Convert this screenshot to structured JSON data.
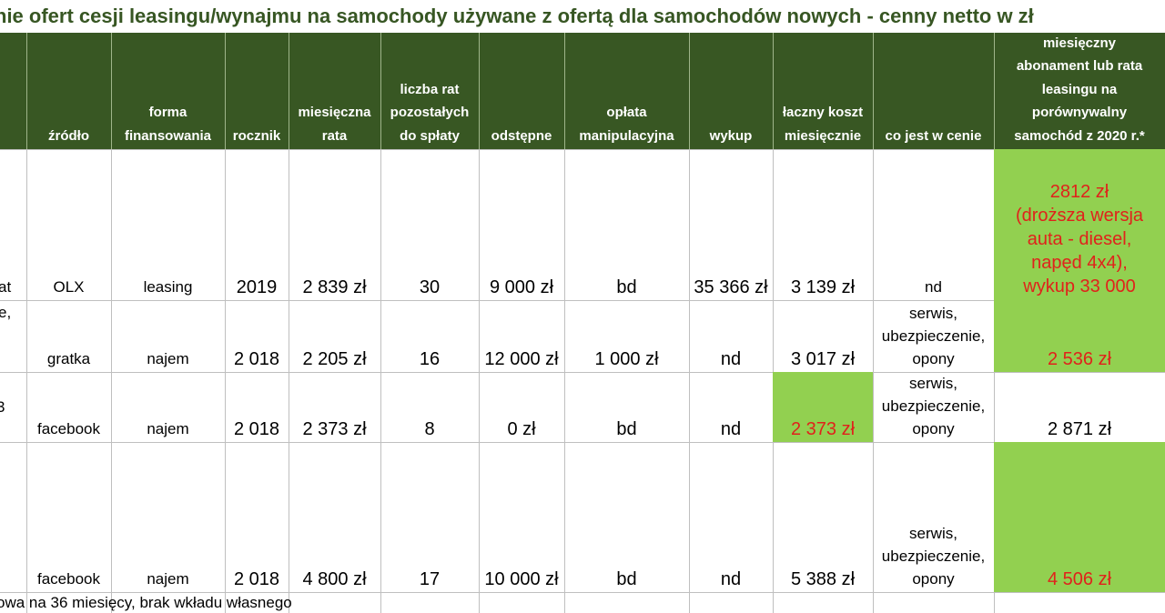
{
  "title": "nie ofert cesji leasingu/wynajmu na samochody używane z ofertą dla samochodów nowych - cenny netto w zł",
  "colors": {
    "header_bg": "#385723",
    "title_color": "#375623",
    "highlight": "#92d050",
    "red_text": "#e0221b"
  },
  "headers": {
    "source": [
      "źródło"
    ],
    "financing": [
      "forma",
      "finansowania"
    ],
    "year": [
      "rocznik"
    ],
    "monthly_rate": [
      "miesięczna",
      "rata"
    ],
    "remaining": [
      "liczba rat",
      "pozostałych",
      "do spłaty"
    ],
    "fee": [
      "odstępne"
    ],
    "handling": [
      "opłata",
      "manipulacyjna"
    ],
    "buyout": [
      "wykup"
    ],
    "total_monthly": [
      "łaczny koszt",
      "miesięcznie"
    ],
    "included": [
      "co jest w cenie"
    ],
    "new_car": [
      "miesięczny",
      "abonament lub rata",
      "leasingu na",
      "porównywalny",
      "samochód z 2020 r.*"
    ]
  },
  "edge_fragments": {
    "row1": "at",
    "row1b": "e,",
    "row3": "3"
  },
  "rows": [
    {
      "source": "OLX",
      "financing": "leasing",
      "year": "2019",
      "monthly_rate": "2 839 zł",
      "remaining": "30",
      "fee": "9 000 zł",
      "handling": "bd",
      "buyout": "35 366 zł",
      "total_monthly": "3 139 zł",
      "included": [
        "nd"
      ],
      "new_car": [
        "2812 zł",
        "(droższa wersja",
        "auta - diesel,",
        "napęd 4x4),",
        "wykup 33 000"
      ]
    },
    {
      "source": "gratka",
      "financing": "najem",
      "year": "2 018",
      "monthly_rate": "2 205 zł",
      "remaining": "16",
      "fee": "12 000 zł",
      "handling": "1 000 zł",
      "buyout": "nd",
      "total_monthly": "3 017 zł",
      "included": [
        "serwis,",
        "ubezpieczenie,",
        "opony"
      ],
      "new_car": [
        "2 536 zł"
      ]
    },
    {
      "source": "facebook",
      "financing": "najem",
      "year": "2 018",
      "monthly_rate": "2 373 zł",
      "remaining": "8",
      "fee": "0 zł",
      "handling": "bd",
      "buyout": "nd",
      "total_monthly": "2 373 zł",
      "included": [
        "serwis,",
        "ubezpieczenie,",
        "opony"
      ],
      "new_car": [
        "2 871 zł"
      ]
    },
    {
      "source": "facebook",
      "financing": "najem",
      "year": "2 018",
      "monthly_rate": "4 800 zł",
      "remaining": "17",
      "fee": "10 000 zł",
      "handling": "bd",
      "buyout": "nd",
      "total_monthly": "5 388 zł",
      "included": [
        "serwis,",
        "ubezpieczenie,",
        "opony"
      ],
      "new_car": [
        "4 506 zł"
      ]
    }
  ],
  "footnote": "owa na 36 miesięcy, brak wkładu własnego"
}
